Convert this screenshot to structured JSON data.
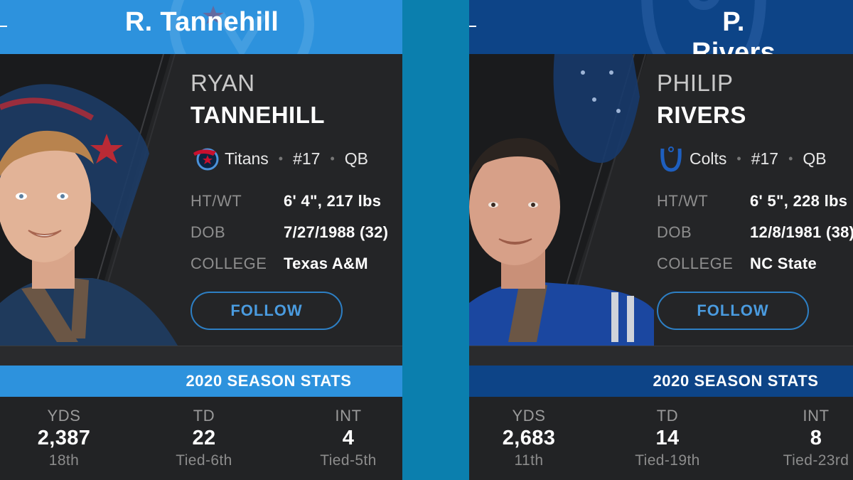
{
  "left": {
    "title": "R. Tannehill",
    "first_name": "RYAN",
    "last_name": "TANNEHILL",
    "team": "Titans",
    "number": "#17",
    "position": "QB",
    "info": [
      {
        "label": "HT/WT",
        "value": "6' 4\", 217 lbs"
      },
      {
        "label": "DOB",
        "value": "7/27/1988 (32)"
      },
      {
        "label": "COLLEGE",
        "value": "Texas A&M"
      }
    ],
    "follow": "FOLLOW",
    "stats_header": "2020 SEASON STATS",
    "stats": [
      {
        "label": "YDS",
        "value": "2,387",
        "rank": "18th"
      },
      {
        "label": "TD",
        "value": "22",
        "rank": "Tied-6th"
      },
      {
        "label": "INT",
        "value": "4",
        "rank": "Tied-5th"
      }
    ],
    "accent_color": "#2d92dd",
    "team_logo_icon": "titans-logo-icon"
  },
  "right": {
    "title": "P. Rivers",
    "first_name": "PHILIP",
    "last_name": "RIVERS",
    "team": "Colts",
    "number": "#17",
    "position": "QB",
    "info": [
      {
        "label": "HT/WT",
        "value": "6' 5\", 228 lbs"
      },
      {
        "label": "DOB",
        "value": "12/8/1981 (38)"
      },
      {
        "label": "COLLEGE",
        "value": "NC State"
      }
    ],
    "follow": "FOLLOW",
    "stats_header": "2020 SEASON STATS",
    "stats": [
      {
        "label": "YDS",
        "value": "2,683",
        "rank": "11th"
      },
      {
        "label": "TD",
        "value": "14",
        "rank": "Tied-19th"
      },
      {
        "label": "INT",
        "value": "8",
        "rank": "Tied-23rd"
      }
    ],
    "accent_color": "#0d4487",
    "team_logo_icon": "colts-logo-icon"
  },
  "divider_color": "#0b7fae"
}
